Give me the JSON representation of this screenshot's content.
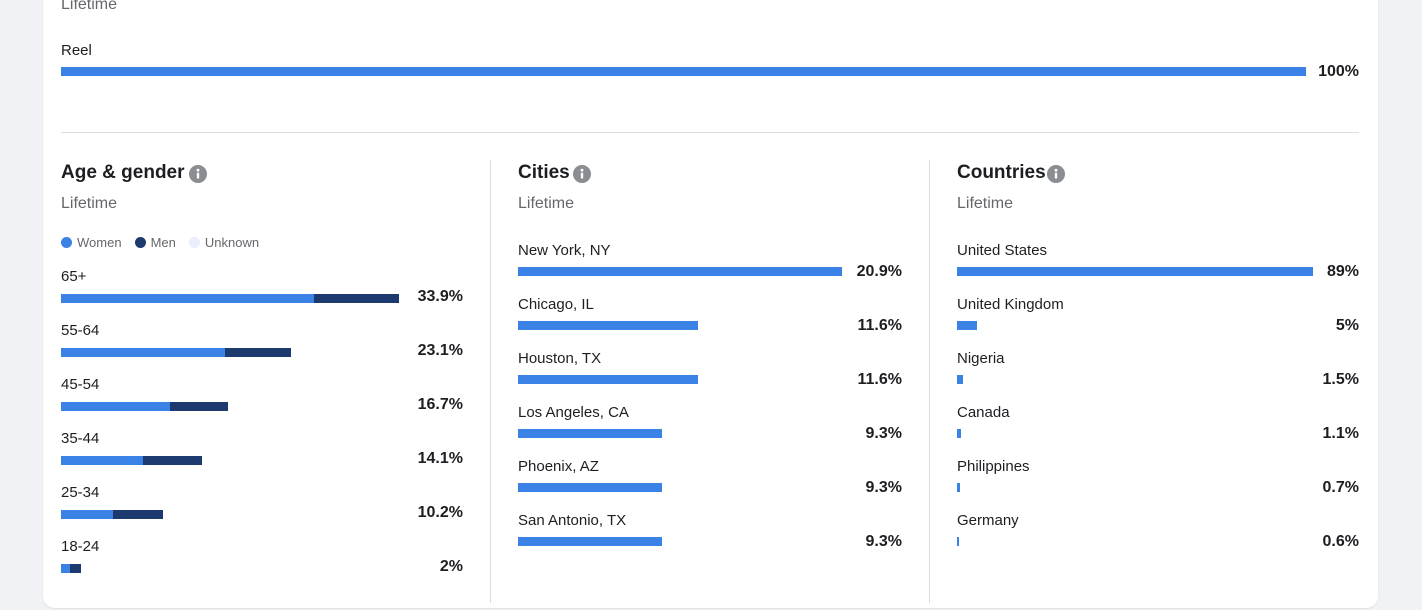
{
  "top": {
    "period": "Lifetime",
    "rows": [
      {
        "label": "Reel",
        "value": 100,
        "value_label": "100%"
      }
    ]
  },
  "age_gender": {
    "title": "Age & gender",
    "period": "Lifetime",
    "legend": [
      {
        "name": "Women",
        "color": "#3b82e6"
      },
      {
        "name": "Men",
        "color": "#1c3a6e"
      },
      {
        "name": "Unknown",
        "color": "#e8eefb"
      }
    ],
    "rows": [
      {
        "label": "65+",
        "women": 25.4,
        "men": 8.5,
        "value": 33.9,
        "value_label": "33.9%"
      },
      {
        "label": "55-64",
        "women": 16.4,
        "men": 6.7,
        "value": 23.1,
        "value_label": "23.1%"
      },
      {
        "label": "45-54",
        "women": 10.9,
        "men": 5.8,
        "value": 16.7,
        "value_label": "16.7%"
      },
      {
        "label": "35-44",
        "women": 8.2,
        "men": 5.9,
        "value": 14.1,
        "value_label": "14.1%"
      },
      {
        "label": "25-34",
        "women": 5.2,
        "men": 5.0,
        "value": 10.2,
        "value_label": "10.2%"
      },
      {
        "label": "18-24",
        "women": 0.9,
        "men": 1.1,
        "value": 2,
        "value_label": "2%"
      }
    ]
  },
  "cities": {
    "title": "Cities",
    "period": "Lifetime",
    "rows": [
      {
        "label": "New York, NY",
        "value": 20.9,
        "value_label": "20.9%"
      },
      {
        "label": "Chicago, IL",
        "value": 11.6,
        "value_label": "11.6%"
      },
      {
        "label": "Houston, TX",
        "value": 11.6,
        "value_label": "11.6%"
      },
      {
        "label": "Los Angeles, CA",
        "value": 9.3,
        "value_label": "9.3%"
      },
      {
        "label": "Phoenix, AZ",
        "value": 9.3,
        "value_label": "9.3%"
      },
      {
        "label": "San Antonio, TX",
        "value": 9.3,
        "value_label": "9.3%"
      }
    ]
  },
  "countries": {
    "title": "Countries",
    "period": "Lifetime",
    "rows": [
      {
        "label": "United States",
        "value": 89,
        "value_label": "89%"
      },
      {
        "label": "United Kingdom",
        "value": 5,
        "value_label": "5%"
      },
      {
        "label": "Nigeria",
        "value": 1.5,
        "value_label": "1.5%"
      },
      {
        "label": "Canada",
        "value": 1.1,
        "value_label": "1.1%"
      },
      {
        "label": "Philippines",
        "value": 0.7,
        "value_label": "0.7%"
      },
      {
        "label": "Germany",
        "value": 0.6,
        "value_label": "0.6%"
      }
    ]
  }
}
